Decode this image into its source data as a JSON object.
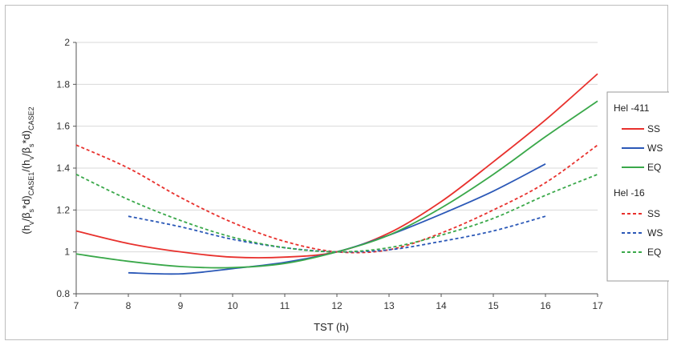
{
  "chart_data": {
    "type": "line",
    "xlabel": "TST (h)",
    "ylabel": "(hᵥ/βₛ*d)CASE1/(hᵥ/βₛ*d)CASE2",
    "ylabel_parts": {
      "p1": "(h",
      "s1": "v",
      "p2": "/β",
      "s2": "s",
      "p3": "*d)",
      "s3": "CASE1",
      "p4": "/(h",
      "s4": "v",
      "p5": "/β",
      "s5": "s",
      "p6": "*d)",
      "s6": "CASE2"
    },
    "xlim": [
      7,
      17
    ],
    "ylim": [
      0.8,
      2
    ],
    "xticks": [
      "7",
      "8",
      "9",
      "10",
      "11",
      "12",
      "13",
      "14",
      "15",
      "16",
      "17"
    ],
    "yticks": [
      "0.8",
      "1",
      "1.2",
      "1.4",
      "1.6",
      "1.8",
      "2"
    ],
    "grid": "horizontal",
    "legend_position": "right",
    "legend_groups": [
      {
        "title": "Hel -411",
        "entries": [
          "SS",
          "WS",
          "EQ"
        ]
      },
      {
        "title": "Hel -16",
        "entries": [
          "SS",
          "WS",
          "EQ"
        ]
      }
    ],
    "series": [
      {
        "group": "Hel -411",
        "name": "SS",
        "color": "#e8312d",
        "dash": "solid",
        "x": [
          7,
          8,
          9,
          10,
          11,
          12,
          13,
          14,
          15,
          16,
          17
        ],
        "y": [
          1.1,
          1.04,
          1.0,
          0.975,
          0.975,
          1.0,
          1.09,
          1.24,
          1.43,
          1.63,
          1.85
        ]
      },
      {
        "group": "Hel -411",
        "name": "WS",
        "color": "#2b58b7",
        "dash": "solid",
        "x": [
          8,
          9,
          10,
          11,
          12,
          13,
          14,
          15,
          16
        ],
        "y": [
          0.9,
          0.895,
          0.92,
          0.95,
          1.0,
          1.08,
          1.18,
          1.29,
          1.42
        ]
      },
      {
        "group": "Hel -411",
        "name": "EQ",
        "color": "#3aa84a",
        "dash": "solid",
        "x": [
          7,
          8,
          9,
          10,
          11,
          12,
          13,
          14,
          15,
          16,
          17
        ],
        "y": [
          0.99,
          0.955,
          0.93,
          0.925,
          0.945,
          1.0,
          1.08,
          1.21,
          1.37,
          1.55,
          1.72
        ]
      },
      {
        "group": "Hel -16",
        "name": "SS",
        "color": "#e8312d",
        "dash": "dashed",
        "x": [
          7,
          8,
          9,
          10,
          11,
          12,
          13,
          14,
          15,
          16,
          17
        ],
        "y": [
          1.51,
          1.4,
          1.26,
          1.14,
          1.05,
          1.0,
          1.01,
          1.09,
          1.2,
          1.33,
          1.51
        ]
      },
      {
        "group": "Hel -16",
        "name": "WS",
        "color": "#2b58b7",
        "dash": "dashed",
        "x": [
          8,
          9,
          10,
          11,
          12,
          13,
          14,
          15,
          16
        ],
        "y": [
          1.17,
          1.12,
          1.06,
          1.02,
          1.0,
          1.01,
          1.05,
          1.1,
          1.17
        ]
      },
      {
        "group": "Hel -16",
        "name": "EQ",
        "color": "#3aa84a",
        "dash": "dashed",
        "x": [
          7,
          8,
          9,
          10,
          11,
          12,
          13,
          14,
          15,
          16,
          17
        ],
        "y": [
          1.37,
          1.25,
          1.15,
          1.07,
          1.02,
          1.0,
          1.02,
          1.08,
          1.16,
          1.27,
          1.37
        ]
      }
    ]
  }
}
